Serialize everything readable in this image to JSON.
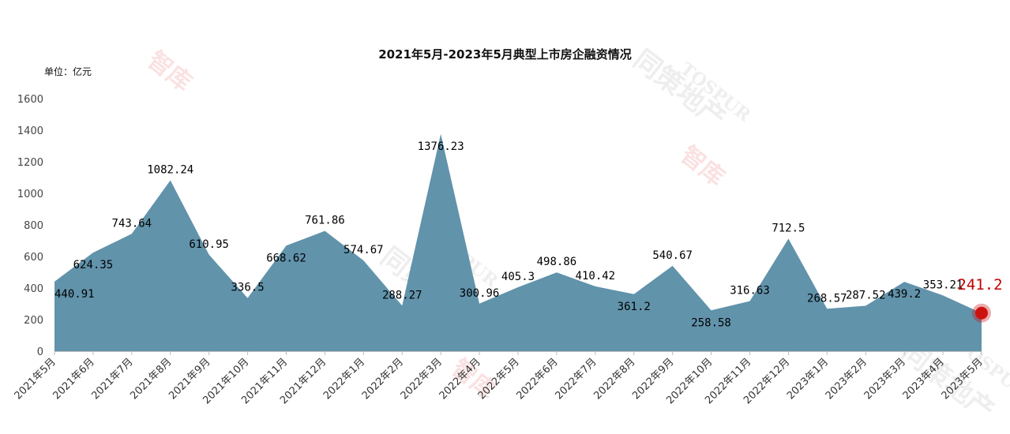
{
  "chart_data": {
    "type": "area",
    "title": "2021年5月-2023年5月典型上市房企融资情况",
    "unit_label": "单位：亿元",
    "categories": [
      "2021年5月",
      "2021年6月",
      "2021年7月",
      "2021年8月",
      "2021年9月",
      "2021年10月",
      "2021年11月",
      "2021年12月",
      "2022年1月",
      "2022年2月",
      "2022年3月",
      "2022年4月",
      "2022年5月",
      "2022年6月",
      "2022年7月",
      "2022年8月",
      "2022年9月",
      "2022年10月",
      "2022年11月",
      "2022年12月",
      "2023年1月",
      "2023年2月",
      "2023年3月",
      "2023年4月",
      "2023年5月"
    ],
    "values": [
      440.91,
      624.35,
      743.64,
      1082.24,
      610.95,
      336.5,
      668.62,
      761.86,
      574.67,
      288.27,
      1376.23,
      300.96,
      405.3,
      498.86,
      410.42,
      361.2,
      540.67,
      258.58,
      316.63,
      712.5,
      268.57,
      287.52,
      439.2,
      353.21,
      241.2
    ],
    "value_labels": [
      "440.91",
      "624.35",
      "743.64",
      "1082.24",
      "610.95",
      "336.5",
      "668.62",
      "761.86",
      "574.67",
      "288.27",
      "1376.23",
      "300.96",
      "405.3",
      "498.86",
      "410.42",
      "361.2",
      "540.67",
      "258.58",
      "316.63",
      "712.5",
      "268.57",
      "287.52",
      "439.2",
      "353.21",
      "241.2"
    ],
    "ylim": [
      0,
      1600
    ],
    "yticks": [
      0,
      200,
      400,
      600,
      800,
      1000,
      1200,
      1400,
      1600
    ],
    "grid": false,
    "legend": "none",
    "colors": {
      "area": "#6193ab",
      "highlight": "#c00000",
      "marker": "#cc1111"
    },
    "watermarks": [
      "智库",
      "同策地产",
      "TOSPUR"
    ]
  }
}
